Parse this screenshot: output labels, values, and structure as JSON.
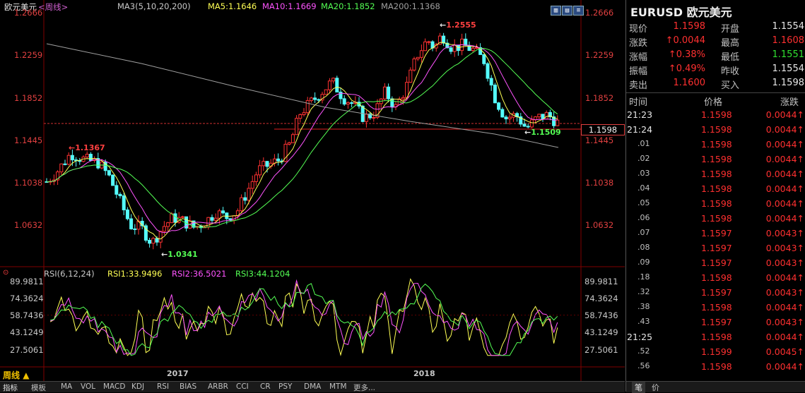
{
  "chart": {
    "title": "欧元美元",
    "period_tag": "<周线>",
    "ma_label": "MA3(5,10,20,200)",
    "ma5": "MA5:1.1646",
    "ma10": "MA10:1.1669",
    "ma20": "MA20:1.1852",
    "ma200": "MA200:1.1368",
    "price_axis": [
      "1.2666",
      "1.2259",
      "1.1852",
      "1.1445",
      "1.1038",
      "1.0632"
    ],
    "right_price_axis": [
      "1.2666",
      "1.2259",
      "1.1852",
      "1.1445",
      "1.1038",
      "1.0632"
    ],
    "current_price_box": "1.1598",
    "annotations": {
      "high1": "1.1367",
      "low1": "1.0341",
      "high2": "1.2555",
      "low2": "1.1509"
    },
    "rsi_label": "RSI(6,12,24)",
    "rsi1": "RSI1:33.9496",
    "rsi2": "RSI2:36.5021",
    "rsi3": "RSI3:44.1204",
    "rsi_axis": [
      "89.9811",
      "74.3624",
      "58.7436",
      "43.1249",
      "27.5061"
    ],
    "years": [
      "2017",
      "2018"
    ],
    "period": "周线",
    "colors": {
      "up": "#ff3232",
      "down": "#54fcfc",
      "ma5": "#ffff54",
      "ma10": "#ff54ff",
      "ma20": "#54ff54",
      "ma200": "#a0a0a0"
    }
  },
  "toolbar": [
    "指标",
    "模板",
    "MA",
    "VOL",
    "MACD",
    "KDJ",
    "RSI",
    "BIAS",
    "ARBR",
    "CCI",
    "CR",
    "PSY",
    "DMA",
    "MTM",
    "更多..."
  ],
  "panel": {
    "title": "EURUSD 欧元美元",
    "quotes": [
      {
        "l1": "现价",
        "v1": "1.1598",
        "l2": "开盘",
        "v2": "1.1554"
      },
      {
        "l1": "涨跌",
        "v1": "↑0.0044",
        "l2": "最高",
        "v2": "1.1608"
      },
      {
        "l1": "涨幅",
        "v1": "↑0.38%",
        "l2": "最低",
        "v2": "1.1551"
      },
      {
        "l1": "振幅",
        "v1": "↑0.49%",
        "l2": "昨收",
        "v2": "1.1554"
      },
      {
        "l1": "卖出",
        "v1": "1.1600",
        "l2": "买入",
        "v2": "1.1598"
      }
    ],
    "tick_headers": [
      "时间",
      "价格",
      "涨跌"
    ],
    "ticks": [
      {
        "t": "21:23",
        "p": "1.1598",
        "c": "0.0044↑"
      },
      {
        "t": "21:24",
        "p": "1.1598",
        "c": "0.0044↑"
      },
      {
        "t": ".01",
        "p": "1.1598",
        "c": "0.0044↑"
      },
      {
        "t": ".02",
        "p": "1.1598",
        "c": "0.0044↑"
      },
      {
        "t": ".03",
        "p": "1.1598",
        "c": "0.0044↑"
      },
      {
        "t": ".04",
        "p": "1.1598",
        "c": "0.0044↑"
      },
      {
        "t": ".05",
        "p": "1.1598",
        "c": "0.0044↑"
      },
      {
        "t": ".06",
        "p": "1.1598",
        "c": "0.0044↑"
      },
      {
        "t": ".07",
        "p": "1.1597",
        "c": "0.0043↑"
      },
      {
        "t": ".08",
        "p": "1.1597",
        "c": "0.0043↑"
      },
      {
        "t": ".09",
        "p": "1.1597",
        "c": "0.0043↑"
      },
      {
        "t": ".18",
        "p": "1.1598",
        "c": "0.0044↑"
      },
      {
        "t": ".32",
        "p": "1.1597",
        "c": "0.0043↑"
      },
      {
        "t": ".38",
        "p": "1.1598",
        "c": "0.0044↑"
      },
      {
        "t": ".43",
        "p": "1.1597",
        "c": "0.0043↑"
      },
      {
        "t": "21:25",
        "p": "1.1598",
        "c": "0.0044↑"
      },
      {
        "t": ".52",
        "p": "1.1599",
        "c": "0.0045↑"
      },
      {
        "t": ".56",
        "p": "1.1598",
        "c": "0.0044↑"
      }
    ],
    "footer": [
      "笔",
      "价"
    ]
  }
}
